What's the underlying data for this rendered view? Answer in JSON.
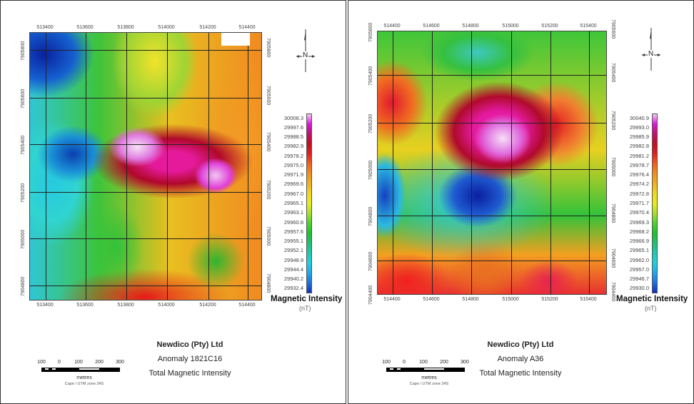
{
  "panels": [
    {
      "x_ticks": [
        "513400",
        "513600",
        "513800",
        "514000",
        "514200",
        "514400"
      ],
      "y_ticks": [
        "7905800",
        "7905600",
        "7905400",
        "7905200",
        "7905000",
        "7904800"
      ],
      "legend": {
        "title": "Magnetic Intensity",
        "unit": "(nT)",
        "values": [
          "30008.3",
          "29997.6",
          "29988.5",
          "29982.9",
          "29978.2",
          "29975.0",
          "29971.9",
          "29969.6",
          "29967.0",
          "29965.1",
          "29963.1",
          "29960.8",
          "29957.6",
          "29955.1",
          "29952.1",
          "29948.9",
          "29944.4",
          "29940.2",
          "29932.4"
        ]
      },
      "north": "N",
      "title_lines": [
        "Newdico (Pty) Ltd",
        "Anomaly 1821C16",
        "Total Magnetic Intensity"
      ],
      "scale": {
        "ticks": [
          "100",
          "0",
          "100",
          "200",
          "300"
        ],
        "unit": "metres",
        "projection": "Cape / UTM zone 34S"
      }
    },
    {
      "x_ticks": [
        "514400",
        "514600",
        "514800",
        "515000",
        "515200",
        "515400"
      ],
      "y_ticks": [
        "7905600",
        "7905400",
        "7905200",
        "7905000",
        "7904800",
        "7904600",
        "7904400"
      ],
      "legend": {
        "title": "Magnetic Intensity",
        "unit": "(nT)",
        "values": [
          "30040.9",
          "29993.0",
          "29985.9",
          "29982.8",
          "29981.2",
          "29978.7",
          "29976.4",
          "29974.2",
          "29972.8",
          "29971.7",
          "29970.4",
          "29969.3",
          "29968.2",
          "29966.9",
          "29965.1",
          "29962.0",
          "29957.0",
          "29946.7",
          "29930.0"
        ]
      },
      "north": "N",
      "title_lines": [
        "Newdico (Pty) Ltd",
        "Anomaly A36",
        "Total Magnetic Intensity"
      ],
      "scale": {
        "ticks": [
          "100",
          "0",
          "100",
          "200",
          "300"
        ],
        "unit": "metres",
        "projection": "Cape / UTM zone 34S"
      }
    }
  ],
  "colors": {
    "ramp": [
      "#f4c8f4",
      "#d81ad8",
      "#c0106a",
      "#c01020",
      "#e02020",
      "#f06020",
      "#f09020",
      "#f0b020",
      "#f0d820",
      "#e8ec20",
      "#a8e030",
      "#50d030",
      "#20c030",
      "#20c070",
      "#20c8b0",
      "#20d0e0",
      "#20a8e8",
      "#2070e0",
      "#1030c0"
    ]
  }
}
